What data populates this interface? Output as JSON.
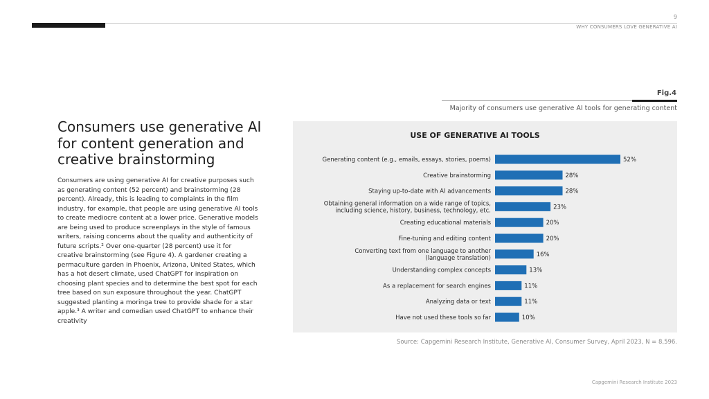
{
  "header": {
    "page_number": "9",
    "section_title": "WHY CONSUMERS LOVE GENERATIVE AI"
  },
  "article": {
    "headline": "Consumers use generative AI for content generation and creative brainstorming",
    "body": "Consumers are using generative AI for creative purposes such as generating content (52 percent) and brainstorming (28 percent). Already, this is leading to complaints in the film industry, for example, that people are using generative AI tools to create mediocre content at a lower price. Generative models are being used to produce screenplays in the style of famous writers, raising concerns about the quality and authenticity of future scripts.² Over one-quarter (28 percent) use it for creative brainstorming (see Figure 4). A gardener creating a permaculture garden in Phoenix, Arizona, United States, which has a hot desert climate, used ChatGPT for inspiration on choosing plant species and to determine the best spot for each tree based on sun exposure throughout the year. ChatGPT suggested planting a moringa tree to provide shade for a star apple.³ A writer and comedian used ChatGPT to enhance their creativity"
  },
  "figure": {
    "label": "Fig.4",
    "caption": "Majority of consumers use generative AI tools for generating content",
    "source": "Source: Capgemini Research Institute, Generative AI, Consumer Survey, April 2023, N = 8,596."
  },
  "footer": {
    "text": "Capgemini Research Institute 2023"
  },
  "colors": {
    "bar": "#1f6fb5",
    "panel": "#eeeeee"
  },
  "chart_data": {
    "type": "bar",
    "orientation": "horizontal",
    "title": "USE OF GENERATIVE AI TOOLS",
    "categories": [
      [
        "Generating content (e.g., emails, essays, stories, poems)"
      ],
      [
        "Creative brainstorming"
      ],
      [
        "Staying up-to-date with AI advancements"
      ],
      [
        "Obtaining general information on a wide range of topics,",
        "including science, history, business, technology, etc."
      ],
      [
        "Creating educational materials"
      ],
      [
        "Fine-tuning and editing content"
      ],
      [
        "Converting text from one language to another",
        "(language translation)"
      ],
      [
        "Understanding complex concepts"
      ],
      [
        "As a replacement for search engines"
      ],
      [
        "Analyzing data or text"
      ],
      [
        "Have not used these tools so far"
      ]
    ],
    "values": [
      52,
      28,
      28,
      23,
      20,
      20,
      16,
      13,
      11,
      11,
      10
    ],
    "value_suffix": "%",
    "xlim": [
      0,
      52
    ],
    "grid": false,
    "legend": "none"
  }
}
